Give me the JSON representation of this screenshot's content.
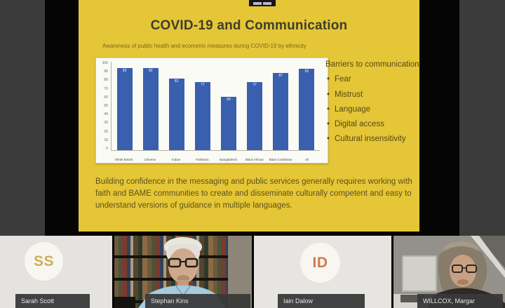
{
  "slide": {
    "title": "COVID-19 and Communication",
    "subtitle": "Awareness of public health and economic measures during COVID-19 by ethnicity",
    "barriers": {
      "heading": "Barriers to communication",
      "items": [
        "Fear",
        "Mistrust",
        "Language",
        "Digital access",
        "Cultural insensitivity"
      ]
    },
    "footer_text": "Building confidence in the messaging and public services generally requires working with faith and BAME communities to create and disseminate culturally competent and easy to understand versions of guidance in multiple languages.",
    "colors": {
      "slide_background": "#e5c636",
      "title_text": "#403d2d",
      "body_text": "#5d521e"
    }
  },
  "chart_data": {
    "type": "bar",
    "categories": [
      "White British",
      "Chinese",
      "Indian",
      "Pakistani",
      "Bangladeshi",
      "Black African",
      "Black Caribbean",
      "All"
    ],
    "values": [
      93,
      93,
      81,
      77,
      60,
      77,
      87,
      92
    ],
    "title": "",
    "xlabel": "",
    "ylabel": "",
    "ylim": [
      0,
      100
    ],
    "yticks": [
      0,
      10,
      20,
      30,
      40,
      50,
      60,
      70,
      80,
      90,
      100
    ],
    "bar_color": "#3a5fae",
    "show_data_labels": true,
    "grid": false,
    "legend": "none"
  },
  "meeting": {
    "participants": [
      {
        "name": "Sarah Scott",
        "initials": "SS",
        "type": "avatar",
        "initials_color": "#cfae57"
      },
      {
        "name": "Stephan Kins",
        "initials": "",
        "type": "video",
        "initials_color": ""
      },
      {
        "name": "Iain Dalow",
        "initials": "ID",
        "type": "avatar",
        "initials_color": "#cd7a52"
      },
      {
        "name": "WILLCOX, Margar",
        "initials": "",
        "type": "video",
        "initials_color": ""
      }
    ]
  }
}
